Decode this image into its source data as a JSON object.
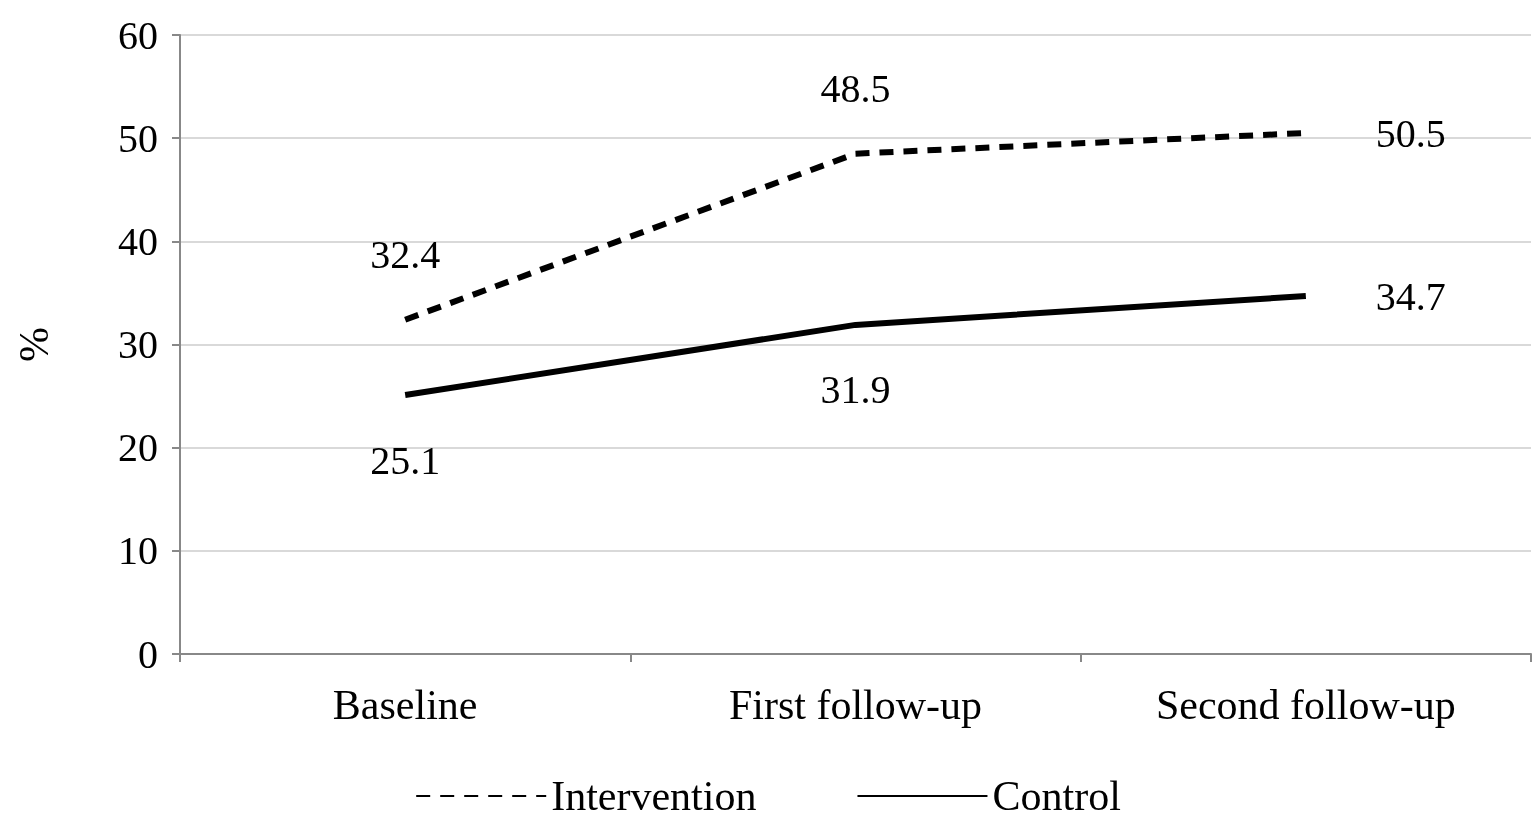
{
  "chart_data": {
    "type": "line",
    "ylabel": "%",
    "categories": [
      "Baseline",
      "First follow-up",
      "Second follow-up"
    ],
    "series": [
      {
        "name": "Intervention",
        "color": "#000000",
        "line_style": "dashed",
        "values": [
          32.4,
          48.5,
          50.5
        ]
      },
      {
        "name": "Control",
        "color": "#000000",
        "line_style": "solid",
        "values": [
          25.1,
          31.9,
          34.7
        ]
      }
    ],
    "ylim": [
      0,
      60
    ],
    "yticks": [
      0,
      10,
      20,
      30,
      40,
      50,
      60
    ],
    "grid": "y",
    "legend": "bottom",
    "marker": "none",
    "data_labels": true
  }
}
